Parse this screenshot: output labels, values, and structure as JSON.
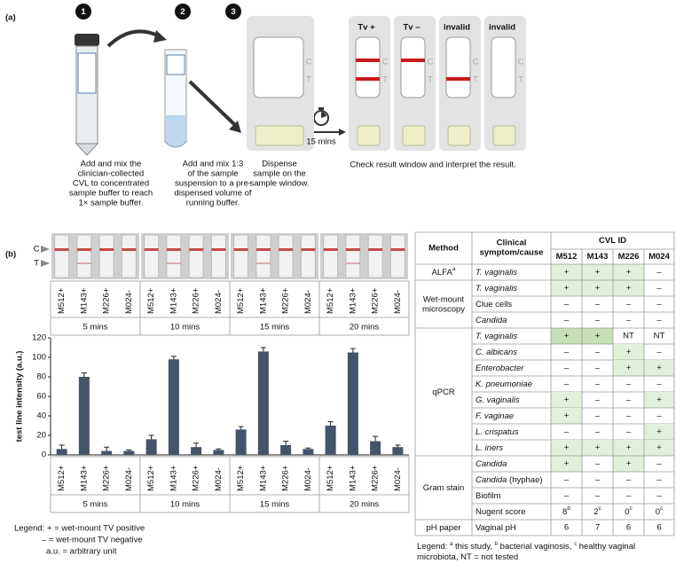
{
  "panel_a": {
    "label": "(a)",
    "steps": [
      "1",
      "2",
      "3"
    ],
    "captions": [
      [
        "Add and mix the",
        "clinician-collected",
        "CVL to concentrated",
        "sample buffer to reach",
        "1× sample buffer."
      ],
      [
        "Add and mix 1:3",
        "of the sample",
        "suspension to a pre-",
        "dispensed volume of",
        "running buffer."
      ],
      [
        "Dispense",
        "sample on the",
        "sample window."
      ]
    ],
    "strip_marks": [
      "C",
      "T"
    ],
    "timer": "15 mins",
    "results": [
      {
        "label": "Tv +",
        "c_line": true,
        "t_line": true
      },
      {
        "label": "Tv –",
        "c_line": true,
        "t_line": false
      },
      {
        "label": "invalid",
        "c_line": false,
        "t_line": true
      },
      {
        "label": "invalid",
        "c_line": false,
        "t_line": false
      }
    ],
    "result_caption": "Check result window and interpret the result."
  },
  "panel_b": {
    "label": "(b)",
    "photo_marks": [
      "C",
      "T"
    ],
    "legend": [
      "Legend: + = wet-mount TV positive",
      "– = wet-mount TV negative",
      "a.u. = arbitrary unit"
    ]
  },
  "chart_data": {
    "type": "bar",
    "y_label": "test line intensity (a.u.)",
    "categories": [
      "M512+",
      "M143+",
      "M226+",
      "M024-",
      "M512+",
      "M143+",
      "M226+",
      "M024-",
      "M512+",
      "M143+",
      "M226+",
      "M024-",
      "M512+",
      "M143+",
      "M226+",
      "M024-"
    ],
    "groups": [
      "5 mins",
      "10 mins",
      "15 mins",
      "20 mins"
    ],
    "values": [
      6,
      80,
      4,
      4,
      16,
      98,
      8,
      5,
      26,
      106,
      10,
      6,
      30,
      105,
      14,
      8
    ],
    "errors": [
      4,
      4,
      4,
      1,
      4,
      3,
      4,
      1,
      3,
      4,
      4,
      1,
      4,
      4,
      5,
      2
    ],
    "color": "#44546a",
    "ylim": [
      0,
      120
    ],
    "yticks": [
      0,
      20,
      40,
      60,
      80,
      100,
      120
    ]
  },
  "table": {
    "header": {
      "method": "Method",
      "symptom": [
        "Clinical",
        "symptom/cause"
      ],
      "cvl": "CVL ID",
      "ids": [
        "M512",
        "M143",
        "M226",
        "M024"
      ]
    },
    "shade": "#e2f0d9",
    "strong_shade": "#c5e0b4",
    "groups": [
      {
        "lines": [
          "ALFA"
        ],
        "sup": "a",
        "rows": [
          {
            "symptom": "T. vaginalis",
            "italic": true,
            "cells": [
              "+",
              "+",
              "+",
              "–"
            ]
          }
        ]
      },
      {
        "lines": [
          "Wet-mount",
          "microscopy"
        ],
        "rows": [
          {
            "symptom": "T. vaginalis",
            "italic": true,
            "cells": [
              "+",
              "+",
              "+",
              "–"
            ]
          },
          {
            "symptom": "Clue cells",
            "italic": false,
            "cells": [
              "–",
              "–",
              "–",
              "–"
            ]
          },
          {
            "symptom": "Candida",
            "italic": true,
            "cells": [
              "–",
              "–",
              "–",
              "–"
            ]
          }
        ]
      },
      {
        "lines": [
          "qPCR"
        ],
        "rows": [
          {
            "symptom": "T. vaginalis",
            "italic": true,
            "strong": true,
            "cells": [
              "+",
              "+",
              "NT",
              "NT"
            ]
          },
          {
            "symptom": "C. albicans",
            "italic": true,
            "cells": [
              "–",
              "–",
              "+",
              "–"
            ]
          },
          {
            "symptom": "Enterobacter",
            "italic": true,
            "cells": [
              "–",
              "–",
              "+",
              "+"
            ]
          },
          {
            "symptom": "K. pneumoniae",
            "italic": true,
            "cells": [
              "–",
              "–",
              "–",
              "–"
            ]
          },
          {
            "symptom": "G. vaginalis",
            "italic": true,
            "cells": [
              "+",
              "–",
              "–",
              "+"
            ]
          },
          {
            "symptom": "F. vaginae",
            "italic": true,
            "cells": [
              "+",
              "–",
              "–",
              "–"
            ]
          },
          {
            "symptom": "L. crispatus",
            "italic": true,
            "cells": [
              "–",
              "–",
              "–",
              "+"
            ]
          },
          {
            "symptom": "L. iners",
            "italic": true,
            "cells": [
              "+",
              "+",
              "+",
              "+"
            ]
          }
        ]
      },
      {
        "lines": [
          "Gram stain"
        ],
        "rows": [
          {
            "symptom": "Candida",
            "italic": true,
            "cells": [
              "+",
              "–",
              "+",
              "–"
            ]
          },
          {
            "symptom": "Candida",
            "note": " (hyphae)",
            "italic": true,
            "cells": [
              "–",
              "–",
              "–",
              "–"
            ]
          },
          {
            "symptom": "Biofilm",
            "italic": false,
            "cells": [
              "–",
              "–",
              "–",
              "–"
            ]
          },
          {
            "symptom": "Nugent score",
            "italic": false,
            "cells": [
              {
                "text": "8",
                "sup": "b"
              },
              {
                "text": "2",
                "sup": "c"
              },
              {
                "text": "0",
                "sup": "c"
              },
              {
                "text": "0",
                "sup": "c"
              }
            ]
          }
        ]
      },
      {
        "lines": [
          "pH paper"
        ],
        "rows": [
          {
            "symptom": "Vaginal pH",
            "italic": false,
            "cells": [
              "6",
              "7",
              "6",
              "6"
            ]
          }
        ]
      }
    ],
    "legend": [
      [
        {
          "text": "Legend: "
        },
        {
          "sup": "a"
        },
        {
          "text": " this study, "
        },
        {
          "sup": "b"
        },
        {
          "text": " bacterial vaginosis, "
        },
        {
          "sup": "c"
        },
        {
          "text": " healthy vaginal"
        }
      ],
      [
        {
          "text": "microbiota, NT = not tested"
        }
      ]
    ]
  }
}
